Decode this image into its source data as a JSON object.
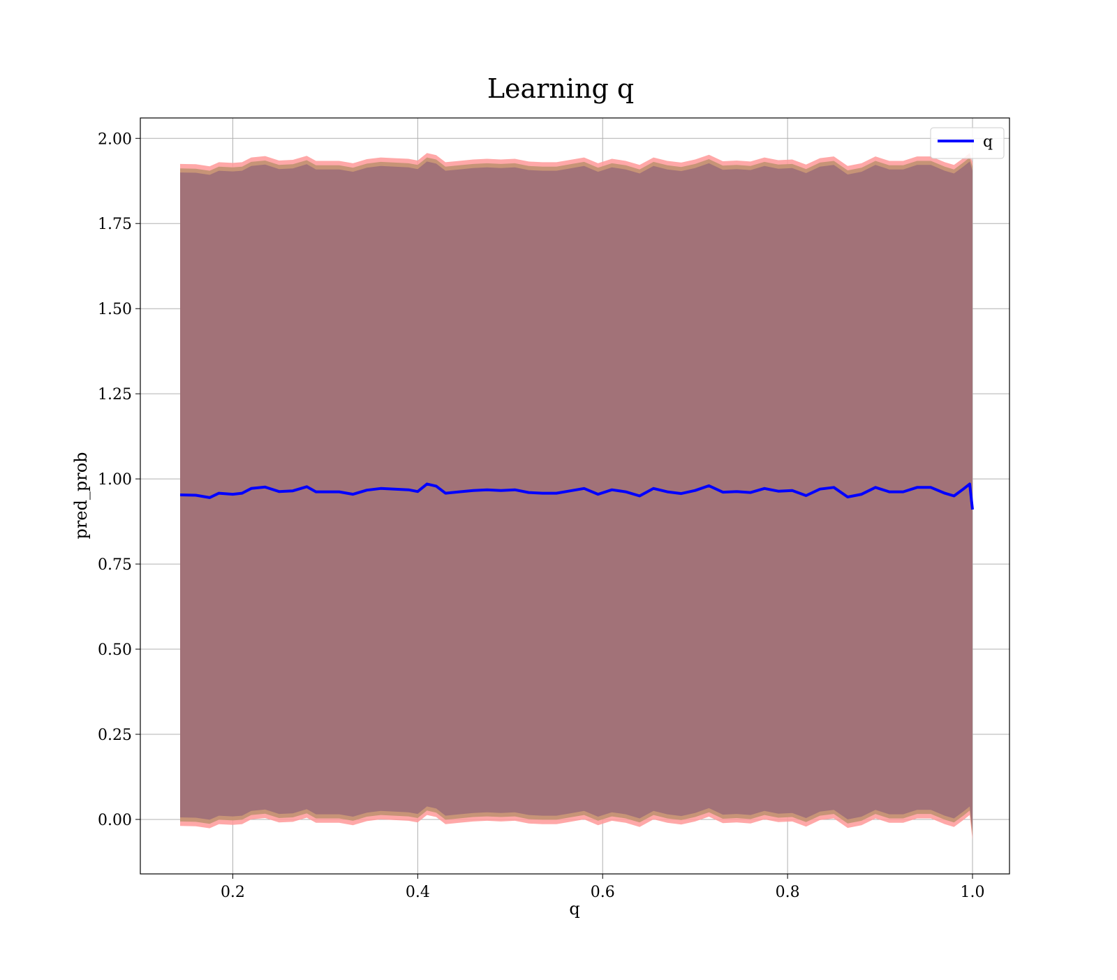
{
  "chart_data": {
    "type": "line",
    "title": "Learning q",
    "xlabel": "q",
    "ylabel": "pred_prob",
    "xlim": [
      0.1,
      1.04
    ],
    "ylim": [
      -0.16,
      2.06
    ],
    "grid": true,
    "legend": {
      "placement": "top-right",
      "entries": [
        "q"
      ]
    },
    "x_ticks": [
      0.2,
      0.4,
      0.6,
      0.8,
      1.0
    ],
    "x_tick_labels": [
      "0.2",
      "0.4",
      "0.6",
      "0.8",
      "1.0"
    ],
    "y_ticks": [
      0.0,
      0.25,
      0.5,
      0.75,
      1.0,
      1.25,
      1.5,
      1.75,
      2.0
    ],
    "y_tick_labels": [
      "0.00",
      "0.25",
      "0.50",
      "0.75",
      "1.00",
      "1.25",
      "1.50",
      "1.75",
      "2.00"
    ],
    "series": [
      {
        "name": "q",
        "color": "#0000ff",
        "x": [
          0.143,
          0.16,
          0.175,
          0.185,
          0.2,
          0.21,
          0.22,
          0.235,
          0.25,
          0.265,
          0.28,
          0.29,
          0.3,
          0.315,
          0.33,
          0.345,
          0.36,
          0.375,
          0.39,
          0.4,
          0.41,
          0.42,
          0.43,
          0.445,
          0.46,
          0.475,
          0.49,
          0.505,
          0.52,
          0.535,
          0.55,
          0.565,
          0.58,
          0.595,
          0.61,
          0.625,
          0.64,
          0.655,
          0.67,
          0.685,
          0.7,
          0.715,
          0.73,
          0.745,
          0.76,
          0.775,
          0.79,
          0.805,
          0.82,
          0.835,
          0.85,
          0.865,
          0.88,
          0.895,
          0.91,
          0.925,
          0.94,
          0.955,
          0.97,
          0.98,
          0.99,
          0.997,
          1.0
        ],
        "y": [
          0.953,
          0.952,
          0.945,
          0.958,
          0.955,
          0.958,
          0.972,
          0.976,
          0.963,
          0.965,
          0.977,
          0.962,
          0.962,
          0.962,
          0.955,
          0.967,
          0.972,
          0.97,
          0.968,
          0.963,
          0.985,
          0.979,
          0.958,
          0.962,
          0.966,
          0.968,
          0.966,
          0.968,
          0.96,
          0.958,
          0.958,
          0.965,
          0.972,
          0.955,
          0.968,
          0.962,
          0.95,
          0.972,
          0.962,
          0.957,
          0.966,
          0.98,
          0.961,
          0.963,
          0.96,
          0.972,
          0.964,
          0.966,
          0.951,
          0.97,
          0.975,
          0.947,
          0.955,
          0.975,
          0.962,
          0.962,
          0.975,
          0.975,
          0.958,
          0.95,
          0.97,
          0.985,
          0.91
        ]
      }
    ],
    "bands": [
      {
        "color": "#ff9999",
        "upper": [
          1.925,
          1.924,
          1.918,
          1.93,
          1.928,
          1.93,
          1.944,
          1.948,
          1.935,
          1.937,
          1.949,
          1.934,
          1.934,
          1.934,
          1.927,
          1.939,
          1.944,
          1.942,
          1.94,
          1.935,
          1.957,
          1.951,
          1.93,
          1.934,
          1.938,
          1.94,
          1.938,
          1.94,
          1.932,
          1.93,
          1.93,
          1.937,
          1.944,
          1.927,
          1.94,
          1.934,
          1.922,
          1.944,
          1.934,
          1.929,
          1.938,
          1.952,
          1.933,
          1.935,
          1.932,
          1.944,
          1.936,
          1.938,
          1.923,
          1.942,
          1.947,
          1.919,
          1.927,
          1.947,
          1.934,
          1.934,
          1.947,
          1.947,
          1.93,
          1.922,
          1.942,
          1.957,
          1.93
        ],
        "lower": [
          -0.019,
          -0.02,
          -0.026,
          -0.014,
          -0.016,
          -0.014,
          0.0,
          0.004,
          -0.009,
          -0.007,
          0.005,
          -0.01,
          -0.01,
          -0.01,
          -0.017,
          -0.005,
          0.0,
          -0.002,
          -0.004,
          -0.009,
          0.013,
          0.007,
          -0.014,
          -0.01,
          -0.006,
          -0.004,
          -0.006,
          -0.004,
          -0.012,
          -0.014,
          -0.014,
          -0.007,
          0.0,
          -0.017,
          -0.004,
          -0.01,
          -0.022,
          0.0,
          -0.01,
          -0.015,
          -0.006,
          0.008,
          -0.011,
          -0.009,
          -0.012,
          0.0,
          -0.008,
          -0.006,
          -0.021,
          -0.002,
          0.003,
          -0.025,
          -0.017,
          0.003,
          -0.01,
          -0.01,
          0.003,
          0.003,
          -0.014,
          -0.022,
          -0.002,
          0.013,
          -0.06
        ]
      },
      {
        "color": "#c49274",
        "upper": [
          1.912,
          1.911,
          1.905,
          1.917,
          1.915,
          1.917,
          1.931,
          1.935,
          1.922,
          1.924,
          1.936,
          1.921,
          1.921,
          1.921,
          1.914,
          1.926,
          1.931,
          1.929,
          1.927,
          1.922,
          1.944,
          1.938,
          1.917,
          1.921,
          1.925,
          1.927,
          1.925,
          1.927,
          1.919,
          1.917,
          1.917,
          1.924,
          1.931,
          1.914,
          1.927,
          1.921,
          1.909,
          1.931,
          1.921,
          1.916,
          1.925,
          1.939,
          1.92,
          1.922,
          1.919,
          1.931,
          1.923,
          1.925,
          1.91,
          1.929,
          1.934,
          1.906,
          1.914,
          1.934,
          1.921,
          1.921,
          1.934,
          1.934,
          1.917,
          1.909,
          1.929,
          1.944,
          1.917
        ],
        "lower": [
          -0.006,
          -0.007,
          -0.013,
          -0.001,
          -0.003,
          -0.001,
          0.013,
          0.017,
          0.004,
          0.006,
          0.018,
          0.003,
          0.003,
          0.003,
          -0.004,
          0.008,
          0.013,
          0.011,
          0.009,
          0.004,
          0.026,
          0.02,
          -0.001,
          0.003,
          0.007,
          0.009,
          0.007,
          0.009,
          0.001,
          -0.001,
          -0.001,
          0.006,
          0.013,
          -0.004,
          0.009,
          0.003,
          -0.009,
          0.013,
          0.003,
          -0.002,
          0.007,
          0.021,
          0.002,
          0.004,
          0.001,
          0.013,
          0.005,
          0.007,
          -0.008,
          0.011,
          0.016,
          -0.012,
          -0.004,
          0.016,
          0.003,
          0.003,
          0.016,
          0.016,
          -0.001,
          -0.009,
          0.011,
          0.026,
          -0.047
        ]
      },
      {
        "color": "#a07078",
        "upper": [
          1.9,
          1.899,
          1.893,
          1.905,
          1.903,
          1.905,
          1.919,
          1.923,
          1.91,
          1.912,
          1.924,
          1.909,
          1.909,
          1.909,
          1.902,
          1.914,
          1.919,
          1.917,
          1.915,
          1.91,
          1.932,
          1.926,
          1.905,
          1.909,
          1.913,
          1.915,
          1.913,
          1.915,
          1.907,
          1.905,
          1.905,
          1.912,
          1.919,
          1.902,
          1.915,
          1.909,
          1.897,
          1.919,
          1.909,
          1.904,
          1.913,
          1.927,
          1.908,
          1.91,
          1.907,
          1.919,
          1.911,
          1.913,
          1.898,
          1.917,
          1.922,
          1.894,
          1.902,
          1.922,
          1.909,
          1.909,
          1.922,
          1.922,
          1.905,
          1.897,
          1.917,
          1.932,
          1.905
        ],
        "lower": [
          0.006,
          0.005,
          -0.001,
          0.011,
          0.009,
          0.011,
          0.025,
          0.029,
          0.016,
          0.018,
          0.03,
          0.015,
          0.015,
          0.015,
          0.008,
          0.02,
          0.025,
          0.023,
          0.021,
          0.016,
          0.038,
          0.032,
          0.011,
          0.015,
          0.019,
          0.021,
          0.019,
          0.021,
          0.013,
          0.011,
          0.011,
          0.018,
          0.025,
          0.008,
          0.021,
          0.015,
          0.003,
          0.025,
          0.015,
          0.01,
          0.019,
          0.033,
          0.014,
          0.016,
          0.013,
          0.025,
          0.017,
          0.019,
          0.004,
          0.023,
          0.028,
          0.0,
          0.008,
          0.028,
          0.015,
          0.015,
          0.028,
          0.028,
          0.011,
          0.003,
          0.023,
          0.038,
          -0.035
        ]
      }
    ]
  }
}
